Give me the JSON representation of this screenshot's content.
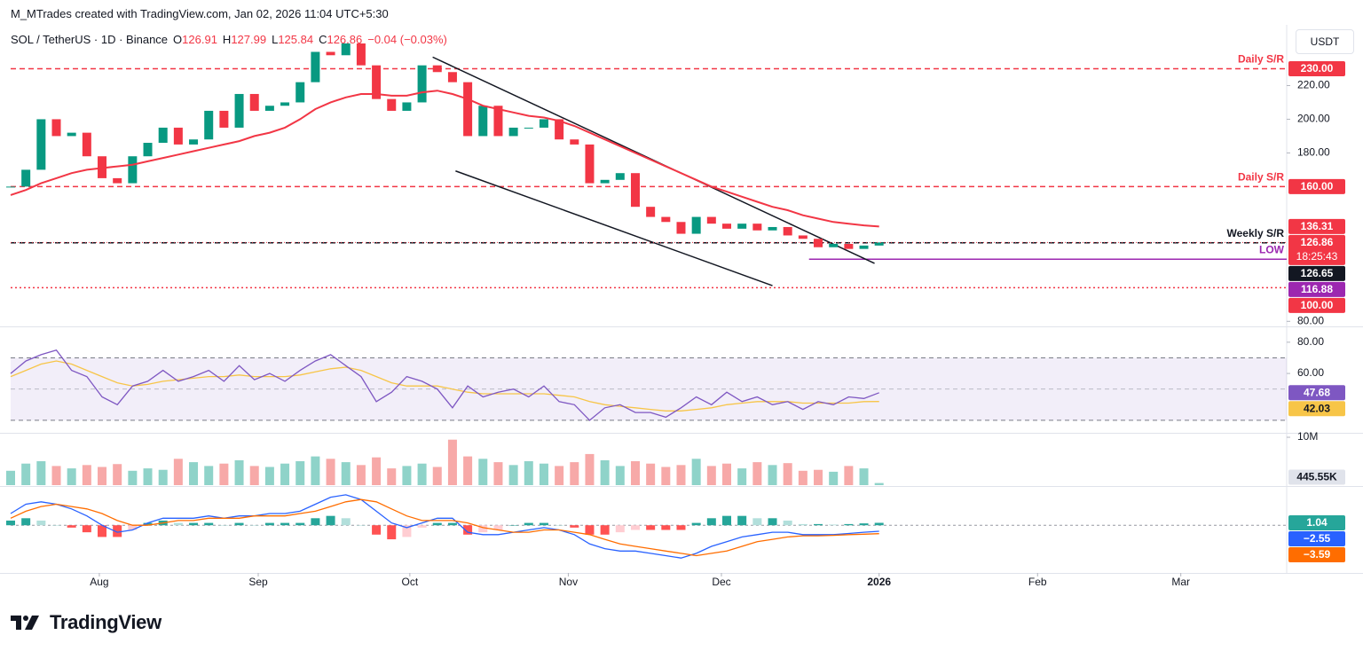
{
  "header": {
    "attribution": "M_MTrades created with TradingView.com, Jan 02, 2026 11:04 UTC+5:30",
    "symbol": "SOL / TetherUS · 1D · Binance",
    "ohlc": [
      {
        "key": "O",
        "value": 126.91
      },
      {
        "key": "H",
        "value": 127.99
      },
      {
        "key": "L",
        "value": 125.84
      },
      {
        "key": "C",
        "value": 126.86
      }
    ],
    "change": "−0.04 (−0.03%)",
    "currency": "USDT"
  },
  "footer": {
    "logo": "TradingView"
  },
  "chart_data": [
    {
      "type": "candlestick",
      "xlim": [
        0,
        83.75
      ],
      "xticks": [
        {
          "value": 5.82,
          "label": "Aug"
        },
        {
          "value": 16.25,
          "label": "Sep"
        },
        {
          "value": 26.2,
          "label": "Oct"
        },
        {
          "value": 36.6,
          "label": "Nov"
        },
        {
          "value": 46.65,
          "label": "Dec"
        },
        {
          "value": 57,
          "label": "2026"
        },
        {
          "value": 67.4,
          "label": "Feb"
        },
        {
          "value": 76.8,
          "label": "Mar"
        }
      ],
      "ylim": [
        77,
        255
      ],
      "yticks": [
        {
          "value": 80,
          "label": "80.00"
        },
        {
          "value": 180,
          "label": "180.00"
        },
        {
          "value": 200,
          "label": "200.00"
        },
        {
          "value": 220,
          "label": "220.00"
        }
      ],
      "up_color": "#089981",
      "down_color": "#f23645",
      "closes": [
        160,
        170,
        200,
        190,
        192,
        178,
        165,
        162,
        178,
        186,
        195,
        185,
        188,
        205,
        195,
        215,
        205,
        208,
        210,
        222,
        240,
        238,
        245,
        232,
        212,
        205,
        210,
        232,
        228,
        222,
        190,
        208,
        190,
        195,
        195,
        200,
        188,
        185,
        162,
        164,
        168,
        148,
        142,
        139,
        132,
        142,
        138,
        135,
        138,
        134,
        136,
        131,
        129,
        124,
        126,
        123,
        125,
        126.86
      ],
      "last": {
        "value": 126.86,
        "label": "126.86",
        "countdown": "18:25:43"
      },
      "ma": {
        "color": "#f23645",
        "last_label": "136.31",
        "values": [
          155,
          158,
          162,
          165,
          168,
          170,
          171,
          172,
          173,
          175,
          177,
          179,
          181,
          183,
          185,
          187,
          190,
          192,
          195,
          200,
          206,
          210,
          213,
          215,
          215,
          214,
          214,
          216,
          217,
          215,
          212,
          208,
          206,
          204,
          202,
          201,
          199,
          196,
          192,
          188,
          184,
          180,
          176,
          172,
          168,
          164,
          160,
          157,
          154,
          151,
          148,
          146,
          143,
          141,
          139,
          138,
          137,
          136.31
        ]
      },
      "levels": [
        {
          "value": 230,
          "label": "230.00",
          "text": "Daily S/R",
          "color": "#f23645",
          "style": "dashed"
        },
        {
          "value": 160,
          "label": "160.00",
          "text": "Daily S/R",
          "color": "#f23645",
          "style": "dashed"
        },
        {
          "value": 126.65,
          "label": "126.65",
          "text": "Weekly S/R",
          "color": "#131722",
          "style": "dashed"
        },
        {
          "value": 116.88,
          "label": "116.88",
          "text": "LOW",
          "color": "#9c27b0",
          "style": "solid",
          "start": 52.4
        },
        {
          "value": 100,
          "label": "100.00",
          "color": "#f23645",
          "style": "dotted"
        }
      ],
      "trendlines": [
        {
          "start": [
            27.7,
            236.9
          ],
          "end": [
            56.7,
            114.4
          ]
        },
        {
          "start": [
            29.2,
            169.3
          ],
          "end": [
            50,
            101.2
          ]
        }
      ],
      "trend_color": "#131722"
    },
    {
      "type": "line",
      "ylim": [
        22,
        89
      ],
      "yticks": [
        {
          "value": 60,
          "label": "60.00"
        },
        {
          "value": 80,
          "label": "80.00"
        }
      ],
      "band": [
        30,
        70
      ],
      "midline": 50,
      "series": [
        {
          "color": "#7e57c2",
          "last_label": "47.68",
          "values": [
            60,
            68,
            72,
            75,
            62,
            58,
            45,
            40,
            52,
            55,
            62,
            55,
            58,
            62,
            55,
            65,
            56,
            60,
            55,
            62,
            68,
            72,
            65,
            58,
            42,
            48,
            58,
            55,
            50,
            38,
            52,
            45,
            48,
            50,
            45,
            52,
            42,
            40,
            30,
            38,
            40,
            35,
            35,
            32,
            38,
            45,
            40,
            48,
            42,
            45,
            40,
            42,
            37,
            42,
            40,
            45,
            44,
            47.68
          ]
        },
        {
          "color": "#f7c548",
          "last_label": "42.03",
          "values": [
            58,
            62,
            66,
            68,
            66,
            62,
            58,
            54,
            52,
            53,
            55,
            56,
            57,
            58,
            58,
            59,
            58,
            58,
            58,
            59,
            61,
            63,
            64,
            62,
            58,
            54,
            52,
            52,
            52,
            50,
            48,
            47,
            47,
            47,
            47,
            47,
            46,
            45,
            42,
            40,
            39,
            38,
            37,
            36,
            36,
            37,
            38,
            40,
            41,
            42,
            42,
            42,
            41,
            41,
            41,
            41,
            42,
            42.03
          ]
        }
      ]
    },
    {
      "type": "bar",
      "ylim": [
        0,
        10560000
      ],
      "yticks": [
        {
          "value": 10000000,
          "label": "10M"
        }
      ],
      "up_color": "#8fd3c9",
      "down_color": "#f7a9a8",
      "label_color": "#e0e3eb",
      "last_label": "445.55K",
      "values": [
        3000000,
        4500000,
        5000000,
        4000000,
        3500000,
        4200000,
        3800000,
        4400000,
        3000000,
        3500000,
        3200000,
        5500000,
        4800000,
        4000000,
        4500000,
        5200000,
        4000000,
        3800000,
        4500000,
        5000000,
        6000000,
        5500000,
        4800000,
        4200000,
        5800000,
        3500000,
        4000000,
        4500000,
        3800000,
        9500000,
        6000000,
        5500000,
        4800000,
        4200000,
        5000000,
        4500000,
        4000000,
        4800000,
        6500000,
        5200000,
        4000000,
        5000000,
        4500000,
        3800000,
        4200000,
        5500000,
        4000000,
        4500000,
        3500000,
        4800000,
        4200000,
        4600000,
        3000000,
        3200000,
        2800000,
        4000000,
        3500000,
        445550
      ]
    },
    {
      "type": "macd",
      "ylim": [
        -20,
        16
      ],
      "zero": 0,
      "histogram": {
        "colors": [
          "#26a69a",
          "#b2dfdb",
          "#ffcdd2",
          "#ff5252"
        ],
        "last_label": "1.04",
        "values": [
          2,
          3,
          2,
          0,
          -1,
          -3,
          -5,
          -5,
          -2,
          1,
          2,
          1,
          1,
          1,
          0,
          1,
          0,
          1,
          1,
          1,
          3,
          4,
          3,
          0,
          -4,
          -6,
          -5,
          -1,
          1,
          1,
          -4,
          -3,
          -2,
          0,
          1,
          1,
          0,
          -1,
          -4,
          -4,
          -3,
          -2,
          -2,
          -2,
          -2,
          1,
          3,
          4,
          4,
          3,
          3,
          2,
          0.5,
          0.5,
          0.3,
          0.5,
          0.8,
          1.04
        ]
      },
      "macd": {
        "color": "#2962ff",
        "last_label": "−2.55",
        "values": [
          5,
          9,
          10,
          9,
          7,
          4,
          0,
          -3,
          -2,
          1,
          3,
          3,
          3,
          4,
          3,
          4,
          4,
          5,
          5,
          6,
          9,
          12,
          13,
          11,
          6,
          1,
          -1,
          1,
          3,
          3,
          -3,
          -4,
          -4,
          -3,
          -2,
          -1,
          -2,
          -4,
          -8,
          -10,
          -11,
          -11,
          -12,
          -13,
          -14,
          -12,
          -9,
          -7,
          -5,
          -4,
          -3,
          -3,
          -4,
          -4,
          -4,
          -3.5,
          -3,
          -2.55
        ]
      },
      "signal": {
        "color": "#ff6d00",
        "last_label": "−3.59",
        "values": [
          3,
          6,
          8,
          9,
          8,
          7,
          5,
          2,
          0,
          0,
          1,
          2,
          2,
          3,
          3,
          3,
          4,
          4,
          4,
          5,
          6,
          8,
          10,
          11,
          10,
          7,
          4,
          2,
          2,
          2,
          1,
          -1,
          -2,
          -3,
          -3,
          -2,
          -2,
          -3,
          -4,
          -6,
          -8,
          -9,
          -10,
          -11,
          -12,
          -13,
          -12,
          -11,
          -9,
          -7,
          -6,
          -5,
          -4.5,
          -4.5,
          -4.3,
          -4,
          -3.8,
          -3.59
        ]
      }
    }
  ]
}
